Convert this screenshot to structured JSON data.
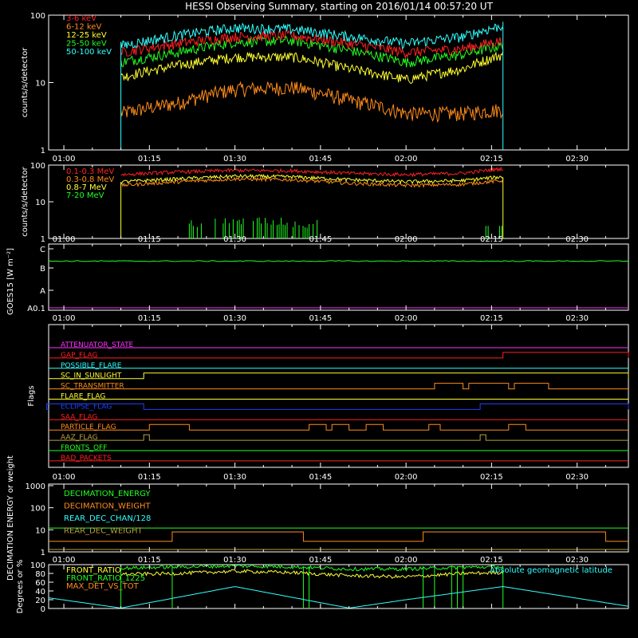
{
  "title": "HESSI Observing Summary, starting on 2016/01/14 00:57:20 UT",
  "colors": {
    "background": "#000000",
    "axis": "#ffffff",
    "red": "#ff2020",
    "orange": "#ff8c1a",
    "yellow": "#ffff30",
    "green": "#20ff20",
    "cyan": "#30ffff",
    "magenta": "#ff30ff",
    "blue": "#2040ff",
    "olive": "#b8a040"
  },
  "time_axis": {
    "start": "00:57:20",
    "end": "02:39:00",
    "ticks": [
      "01:00",
      "01:15",
      "01:30",
      "01:45",
      "02:00",
      "02:15",
      "02:30"
    ]
  },
  "chart_data": [
    {
      "type": "line",
      "panel": "spectrum-low",
      "ylabel": "counts/s/detector",
      "yscale": "log",
      "ylim": [
        1,
        100
      ],
      "yticks": [
        "1",
        "10",
        "100"
      ],
      "data_interval": [
        "01:10:00",
        "02:17:00"
      ],
      "series": [
        {
          "name": "3-6 keV",
          "color": "#ff2020",
          "x": [
            "01:10",
            "01:20",
            "01:30",
            "01:40",
            "01:50",
            "02:00",
            "02:10",
            "02:17"
          ],
          "y": [
            28,
            38,
            48,
            50,
            38,
            28,
            32,
            42
          ]
        },
        {
          "name": "6-12 keV",
          "color": "#ff8c1a",
          "x": [
            "01:10",
            "01:20",
            "01:30",
            "01:40",
            "01:50",
            "02:00",
            "02:10",
            "02:17"
          ],
          "y": [
            3.5,
            5,
            8,
            8.5,
            5.5,
            3.5,
            3.5,
            4
          ]
        },
        {
          "name": "12-25 keV",
          "color": "#ffff30",
          "x": [
            "01:10",
            "01:20",
            "01:30",
            "01:40",
            "01:50",
            "02:00",
            "02:10",
            "02:17"
          ],
          "y": [
            12,
            18,
            24,
            24,
            16,
            11,
            16,
            26
          ]
        },
        {
          "name": "25-50 keV",
          "color": "#20ff20",
          "x": [
            "01:10",
            "01:20",
            "01:30",
            "01:40",
            "01:50",
            "02:00",
            "02:10",
            "02:17"
          ],
          "y": [
            20,
            28,
            40,
            42,
            30,
            20,
            26,
            36
          ]
        },
        {
          "name": "50-100 keV",
          "color": "#30ffff",
          "x": [
            "01:10",
            "01:20",
            "01:30",
            "01:40",
            "01:50",
            "02:00",
            "02:10",
            "02:17"
          ],
          "y": [
            35,
            50,
            65,
            62,
            48,
            38,
            48,
            70
          ]
        }
      ]
    },
    {
      "type": "line",
      "panel": "spectrum-high",
      "ylabel": "counts/s/detector",
      "yscale": "log",
      "ylim": [
        1,
        100
      ],
      "yticks": [
        "1",
        "10",
        "100"
      ],
      "data_interval": [
        "01:10:00",
        "02:17:00"
      ],
      "series": [
        {
          "name": "0.1-0.3 MeV",
          "color": "#ff2020",
          "x": [
            "01:10",
            "01:20",
            "01:30",
            "01:40",
            "01:50",
            "02:00",
            "02:10",
            "02:17"
          ],
          "y": [
            55,
            65,
            72,
            70,
            60,
            55,
            60,
            80
          ]
        },
        {
          "name": "0.3-0.8 MeV",
          "color": "#ff8c1a",
          "x": [
            "01:10",
            "01:20",
            "01:30",
            "01:40",
            "01:50",
            "02:00",
            "02:10",
            "02:17"
          ],
          "y": [
            28,
            35,
            42,
            40,
            32,
            28,
            30,
            38
          ]
        },
        {
          "name": "0.8-7 MeV",
          "color": "#ffff30",
          "x": [
            "01:10",
            "01:20",
            "01:30",
            "01:40",
            "01:50",
            "02:00",
            "02:10",
            "02:17"
          ],
          "y": [
            35,
            42,
            50,
            48,
            40,
            35,
            38,
            48
          ]
        },
        {
          "name": "7-20 MeV",
          "color": "#20ff20",
          "x": [
            "01:23",
            "01:28",
            "01:33",
            "01:38",
            "01:43"
          ],
          "y": [
            2.5,
            3,
            3,
            3,
            2.5
          ]
        }
      ]
    },
    {
      "type": "line",
      "panel": "goes",
      "ylabel": "GOES15 [W m⁻²]",
      "ylevels": [
        "A0.1",
        "A",
        "B",
        "C"
      ],
      "series": [
        {
          "name": "GOES15",
          "color": "#20ff20",
          "x": [
            "00:57",
            "02:39"
          ],
          "y": [
            "B",
            "B"
          ]
        },
        {
          "name": "baseline",
          "color": "#ff30ff",
          "x": [
            "00:57",
            "02:39"
          ],
          "y": [
            "A0.1",
            "A0.1"
          ]
        }
      ]
    },
    {
      "type": "line",
      "panel": "flags",
      "ylabel": "Flags",
      "series": [
        {
          "name": "ATTENUATOR_STATE",
          "color": "#ff30ff",
          "on": []
        },
        {
          "name": "GAP_FLAG",
          "color": "#ff2020",
          "on": [
            [
              "02:17",
              "02:39"
            ]
          ]
        },
        {
          "name": "POSSIBLE_FLARE",
          "color": "#30ffff",
          "on": []
        },
        {
          "name": "SC_IN_SUNLIGHT",
          "color": "#ffff30",
          "on": [
            [
              "01:14",
              "02:39"
            ]
          ]
        },
        {
          "name": "SC_TRANSMITTER",
          "color": "#ff8c1a",
          "on": [
            [
              "02:05",
              "02:10"
            ],
            [
              "02:11",
              "02:18"
            ],
            [
              "02:19",
              "02:25"
            ]
          ]
        },
        {
          "name": "FLARE_FLAG",
          "color": "#ffff30",
          "on": []
        },
        {
          "name": "ECLIPSE_FLAG",
          "color": "#2040ff",
          "on": [
            [
              "00:57",
              "01:14"
            ],
            [
              "02:13",
              "02:39"
            ]
          ]
        },
        {
          "name": "SAA_FLAG",
          "color": "#ff2020",
          "on": []
        },
        {
          "name": "PARTICLE_FLAG",
          "color": "#ff8c1a",
          "on": [
            [
              "01:15",
              "01:22"
            ],
            [
              "01:43",
              "01:46"
            ],
            [
              "01:47",
              "01:50"
            ],
            [
              "01:53",
              "01:56"
            ],
            [
              "02:04",
              "02:06"
            ],
            [
              "02:18",
              "02:21"
            ]
          ]
        },
        {
          "name": "AAZ_FLAG",
          "color": "#b8a040",
          "on": [
            [
              "01:14",
              "01:15"
            ],
            [
              "02:13",
              "02:14"
            ]
          ]
        },
        {
          "name": "FRONTS_OFF",
          "color": "#20ff20",
          "on": []
        },
        {
          "name": "BAD_PACKETS",
          "color": "#ff2020",
          "on": []
        }
      ]
    },
    {
      "type": "line",
      "panel": "decimation",
      "ylabel": "DECIMATION ENERGY or weight",
      "yscale": "log",
      "ylim": [
        1,
        1000
      ],
      "yticks": [
        "1",
        "10",
        "100",
        "1000"
      ],
      "series": [
        {
          "name": "DECIMATION_ENERGY",
          "color": "#20ff20",
          "x": [
            "00:57",
            "02:39"
          ],
          "y": [
            12,
            12
          ]
        },
        {
          "name": "DECIMATION_WEIGHT",
          "color": "#ff8c1a",
          "on": [
            [
              "01:19",
              "01:42"
            ],
            [
              "02:03",
              "02:35"
            ]
          ],
          "high": 8,
          "low": 3
        },
        {
          "name": "REAR_DEC_CHAN/128",
          "color": "#30ffff",
          "x": [
            "00:57",
            "02:39"
          ],
          "y": [
            0.9,
            0.9
          ]
        },
        {
          "name": "REAR_DEC_WEIGHT",
          "color": "#b8a040",
          "x": [
            "00:57",
            "02:39"
          ],
          "y": [
            0.9,
            0.9
          ]
        }
      ]
    },
    {
      "type": "line",
      "panel": "ratios",
      "ylabel": "Degrees or %",
      "ylim": [
        0,
        100
      ],
      "yticks": [
        "0",
        "20",
        "40",
        "60",
        "80",
        "100"
      ],
      "series": [
        {
          "name": "FRONT_RATIO",
          "color": "#ffff30",
          "x": [
            "01:10",
            "01:20",
            "01:30",
            "01:40",
            "01:50",
            "02:00",
            "02:10",
            "02:17"
          ],
          "y": [
            78,
            80,
            85,
            82,
            75,
            72,
            80,
            82
          ]
        },
        {
          "name": "FRONT_RATIO_1225",
          "color": "#20ff20",
          "x": [
            "01:10",
            "01:20",
            "01:30",
            "01:40",
            "01:50",
            "02:00",
            "02:10",
            "02:17"
          ],
          "y": [
            92,
            95,
            97,
            95,
            90,
            90,
            94,
            95
          ]
        },
        {
          "name": "MAX_DET_VS_TOT",
          "color": "#ff8c1a",
          "x": [
            "01:10",
            "02:17"
          ],
          "y": [
            0,
            0
          ]
        },
        {
          "name": "Absolute geomagnetic latitude",
          "color": "#30ffff",
          "x": [
            "00:57",
            "01:10",
            "01:30",
            "01:50",
            "02:00",
            "02:17",
            "02:39"
          ],
          "y": [
            25,
            1,
            50,
            1,
            20,
            50,
            5
          ]
        }
      ]
    }
  ]
}
